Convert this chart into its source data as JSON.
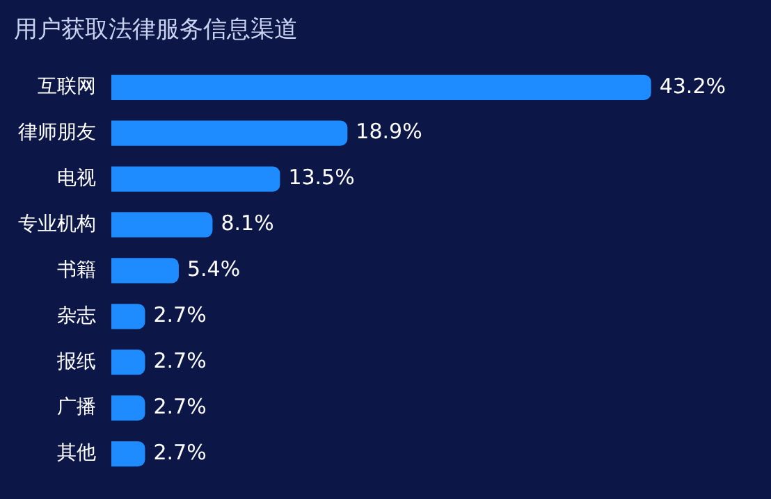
{
  "chart_data": {
    "type": "bar",
    "orientation": "horizontal",
    "title": "用户获取法律服务信息渠道",
    "categories": [
      "互联网",
      "律师朋友",
      "电视",
      "专业机构",
      "书籍",
      "杂志",
      "报纸",
      "广播",
      "其他"
    ],
    "values": [
      43.2,
      18.9,
      13.5,
      8.1,
      5.4,
      2.7,
      2.7,
      2.7,
      2.7
    ],
    "value_labels": [
      "43.2%",
      "18.9%",
      "13.5%",
      "8.1%",
      "5.4%",
      "2.7%",
      "2.7%",
      "2.7%",
      "2.7%"
    ],
    "color": "#1e8cff",
    "grid": false,
    "legend": false,
    "tick_labels": "y"
  }
}
